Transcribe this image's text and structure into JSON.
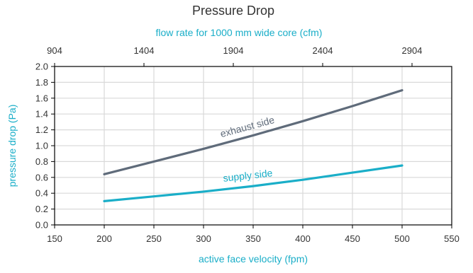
{
  "chart_data": {
    "type": "line",
    "title": "Pressure Drop",
    "secondary_x_label": "flow  rate  for 1000 mm wide core (cfm)",
    "xlabel": "active face velocity (fpm)",
    "ylabel": "pressure drop (Pa)",
    "xlim": [
      150,
      550
    ],
    "ylim": [
      0.0,
      2.0
    ],
    "x_ticks": [
      "150",
      "200",
      "250",
      "300",
      "350",
      "400",
      "450",
      "500",
      "550"
    ],
    "y_ticks": [
      "0.0",
      "0.2",
      "0.4",
      "0.6",
      "0.8",
      "1.0",
      "1.2",
      "1.4",
      "1.6",
      "1.8",
      "2.0"
    ],
    "secondary_x_ticks": [
      "904",
      "1404",
      "1904",
      "2404",
      "2904"
    ],
    "secondary_x_tick_positions": [
      150,
      240,
      330,
      420,
      510
    ],
    "grid": true,
    "series": [
      {
        "name": "exhaust side",
        "color": "#5f6b7a",
        "x": [
          200,
          250,
          300,
          350,
          400,
          450,
          500
        ],
        "y": [
          0.64,
          0.8,
          0.96,
          1.13,
          1.31,
          1.5,
          1.7
        ]
      },
      {
        "name": "supply side",
        "color": "#1aaec8",
        "x": [
          200,
          250,
          300,
          350,
          400,
          450,
          500
        ],
        "y": [
          0.3,
          0.36,
          0.42,
          0.49,
          0.57,
          0.66,
          0.75
        ]
      }
    ],
    "colors": {
      "title": "#333333",
      "secondary_axis_label": "#1aaec8",
      "axis_label": "#1aaec8",
      "tick_text": "#333333",
      "grid": "#d9d9d9",
      "frame": "#000000"
    }
  }
}
